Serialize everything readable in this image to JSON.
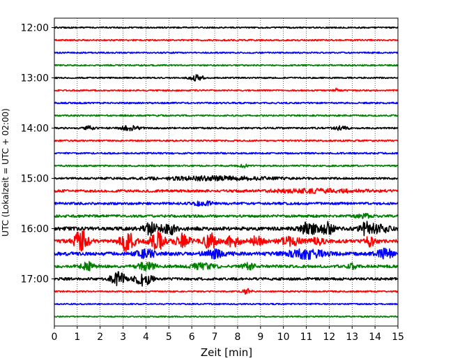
{
  "chart_data": {
    "type": "line",
    "title": "",
    "xlabel": "Zeit  [min]",
    "ylabel": "UTC (Lokalzeit = UTC + 02:00)",
    "xlim": [
      0,
      15
    ],
    "x_ticks": [
      "0",
      "1",
      "2",
      "3",
      "4",
      "5",
      "6",
      "7",
      "8",
      "9",
      "10",
      "11",
      "12",
      "13",
      "14",
      "15"
    ],
    "y_ticks": [
      {
        "label": "12:00",
        "trace": 0
      },
      {
        "label": "13:00",
        "trace": 4
      },
      {
        "label": "14:00",
        "trace": 8
      },
      {
        "label": "15:00",
        "trace": 12
      },
      {
        "label": "16:00",
        "trace": 16
      },
      {
        "label": "17:00",
        "trace": 20
      }
    ],
    "grid": "vertical dotted",
    "colors": [
      "#000000",
      "#ff0000",
      "#0000ff",
      "#008000"
    ],
    "traces": [
      {
        "start": "12:00",
        "amp": 1.0,
        "bursts": []
      },
      {
        "start": "12:15",
        "amp": 1.0,
        "bursts": []
      },
      {
        "start": "12:30",
        "amp": 1.0,
        "bursts": []
      },
      {
        "start": "12:45",
        "amp": 1.0,
        "bursts": []
      },
      {
        "start": "13:00",
        "amp": 1.0,
        "bursts": [
          [
            6.2,
            4,
            0.3
          ]
        ]
      },
      {
        "start": "13:15",
        "amp": 1.0,
        "bursts": [
          [
            12.3,
            2.5,
            0.1
          ]
        ]
      },
      {
        "start": "13:30",
        "amp": 1.1,
        "bursts": []
      },
      {
        "start": "13:45",
        "amp": 1.1,
        "bursts": []
      },
      {
        "start": "14:00",
        "amp": 1.2,
        "bursts": [
          [
            1.5,
            2.5,
            0.2
          ],
          [
            3.3,
            3,
            0.4
          ],
          [
            12.5,
            2.5,
            0.3
          ]
        ]
      },
      {
        "start": "14:15",
        "amp": 1.1,
        "bursts": []
      },
      {
        "start": "14:30",
        "amp": 1.1,
        "bursts": []
      },
      {
        "start": "14:45",
        "amp": 1.1,
        "bursts": [
          [
            8.3,
            2,
            0.2
          ]
        ]
      },
      {
        "start": "15:00",
        "amp": 1.4,
        "bursts": [
          [
            7.0,
            2.5,
            2.5
          ]
        ]
      },
      {
        "start": "15:15",
        "amp": 1.8,
        "bursts": [
          [
            11.5,
            2,
            2.0
          ]
        ]
      },
      {
        "start": "15:30",
        "amp": 1.7,
        "bursts": [
          [
            6.5,
            3,
            0.4
          ]
        ]
      },
      {
        "start": "15:45",
        "amp": 1.8,
        "bursts": [
          [
            13.5,
            3,
            0.3
          ]
        ]
      },
      {
        "start": "16:00",
        "amp": 2.5,
        "bursts": [
          [
            4.2,
            8,
            0.3
          ],
          [
            5.0,
            9,
            0.3
          ],
          [
            11.1,
            10,
            0.3
          ],
          [
            11.9,
            8,
            0.3
          ],
          [
            13.7,
            11,
            0.3
          ],
          [
            14.3,
            5,
            0.3
          ]
        ]
      },
      {
        "start": "16:15",
        "amp": 2.5,
        "bursts": [
          [
            1.2,
            16,
            0.3
          ],
          [
            3.2,
            15,
            0.3
          ],
          [
            4.5,
            12,
            0.3
          ],
          [
            5.6,
            10,
            0.3
          ],
          [
            6.8,
            10,
            0.3
          ],
          [
            7.8,
            7,
            0.3
          ],
          [
            8.8,
            7,
            0.3
          ],
          [
            10.3,
            5,
            0.5
          ],
          [
            11.5,
            4,
            0.3
          ],
          [
            13.8,
            7,
            0.2
          ]
        ]
      },
      {
        "start": "16:30",
        "amp": 2.5,
        "bursts": [
          [
            4.0,
            6,
            0.4
          ],
          [
            7.0,
            5,
            0.5
          ],
          [
            11.0,
            6,
            0.8
          ],
          [
            14.5,
            6,
            0.4
          ]
        ]
      },
      {
        "start": "16:45",
        "amp": 2.0,
        "bursts": [
          [
            1.5,
            6,
            0.3
          ],
          [
            4.0,
            5,
            0.4
          ],
          [
            6.5,
            4,
            0.5
          ],
          [
            8.5,
            4,
            0.3
          ],
          [
            13.0,
            3,
            0.2
          ]
        ]
      },
      {
        "start": "17:00",
        "amp": 1.8,
        "bursts": [
          [
            2.8,
            9,
            0.35
          ],
          [
            3.9,
            9,
            0.35
          ]
        ]
      },
      {
        "start": "17:15",
        "amp": 1.0,
        "bursts": [
          [
            8.4,
            4,
            0.2
          ]
        ]
      },
      {
        "start": "17:30",
        "amp": 0.9,
        "bursts": []
      },
      {
        "start": "17:45",
        "amp": 0.9,
        "bursts": []
      }
    ]
  }
}
